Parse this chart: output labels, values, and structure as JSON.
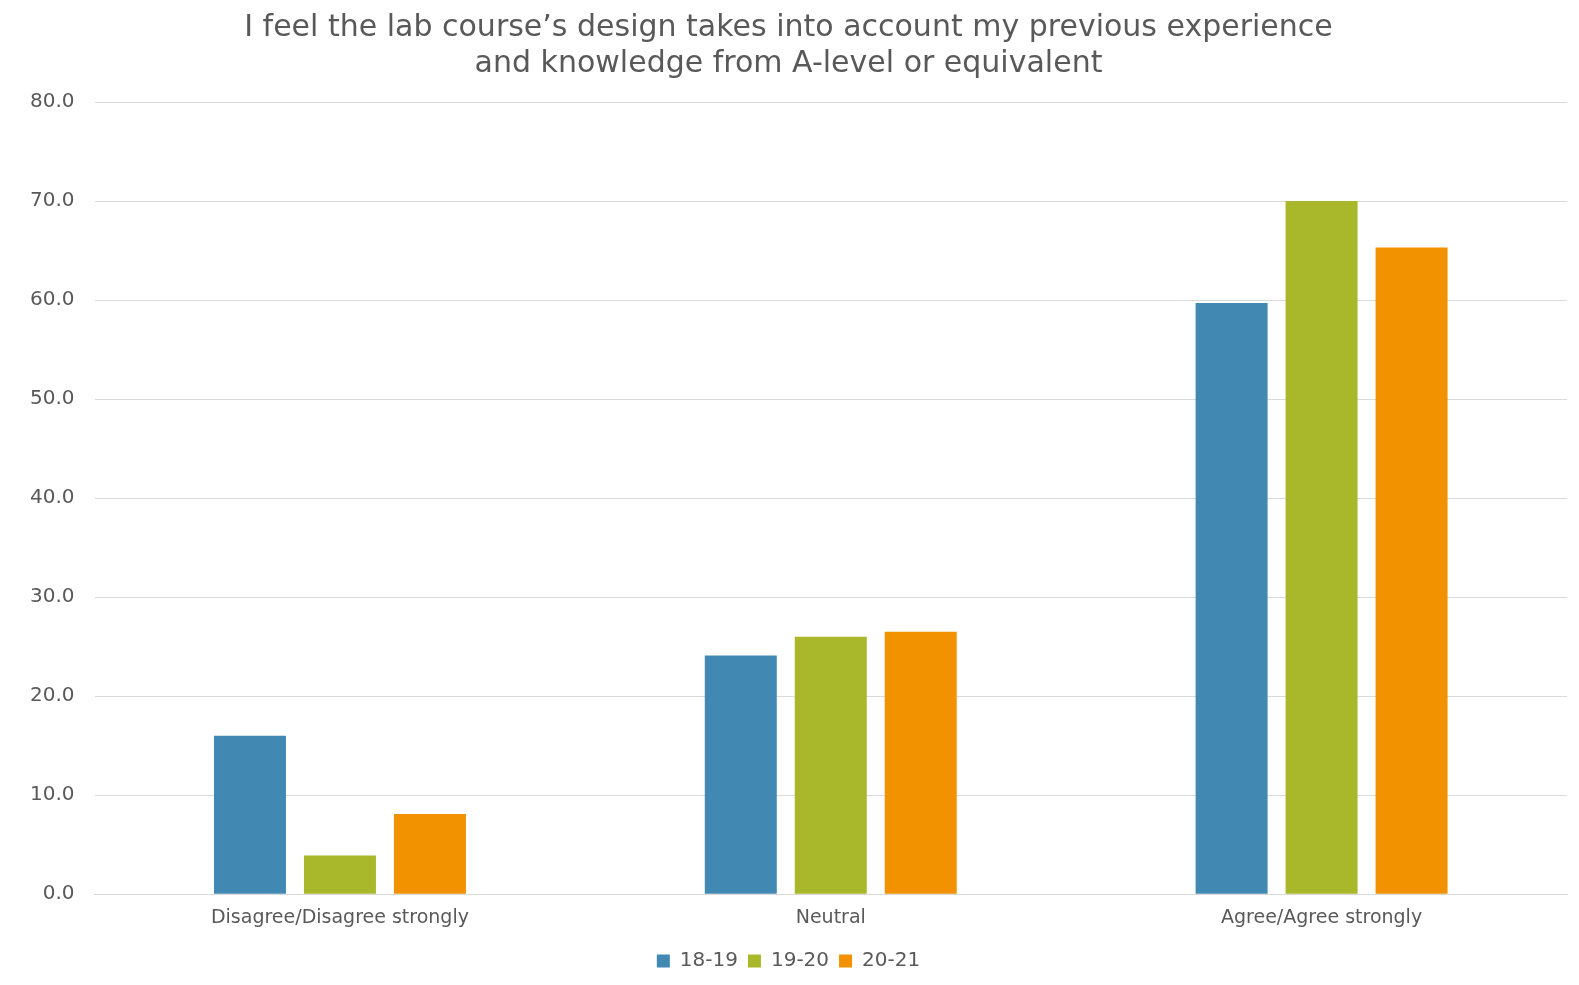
{
  "chart_data": {
    "type": "bar",
    "title": "I feel the lab course’s design takes into account my previous experience\nand knowledge from A-level or equivalent",
    "categories": [
      "Disagree/Disagree strongly",
      "Neutral",
      "Agree/Agree strongly"
    ],
    "series": [
      {
        "name": "18-19",
        "color": "#4189b3",
        "values": [
          16.0,
          24.1,
          59.7
        ]
      },
      {
        "name": "19-20",
        "color": "#a8b82a",
        "values": [
          3.9,
          26.0,
          70.0
        ]
      },
      {
        "name": "20-21",
        "color": "#f39200",
        "values": [
          8.1,
          26.5,
          65.3
        ]
      }
    ],
    "ylim": [
      0,
      80
    ],
    "yticks": [
      {
        "value": 0,
        "label": "0.0"
      },
      {
        "value": 10,
        "label": "10.0"
      },
      {
        "value": 20,
        "label": "20.0"
      },
      {
        "value": 30,
        "label": "30.0"
      },
      {
        "value": 40,
        "label": "40.0"
      },
      {
        "value": 50,
        "label": "50.0"
      },
      {
        "value": 60,
        "label": "60.0"
      },
      {
        "value": 70,
        "label": "70.0"
      },
      {
        "value": 80,
        "label": "80.0"
      }
    ],
    "grid": "y",
    "legend": "bottom"
  }
}
